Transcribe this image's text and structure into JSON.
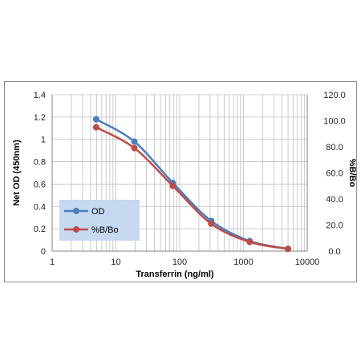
{
  "chart_data": {
    "type": "line",
    "xscale": "log",
    "xlabel": "Transferrin (ng/ml)",
    "ylabel": "Net OD (450nm)",
    "y2label": "%B/Bo",
    "xlim": [
      1,
      10000
    ],
    "ylim": [
      0,
      1.4
    ],
    "y2lim": [
      0,
      120
    ],
    "x_ticks": [
      "1",
      "10",
      "100",
      "1000",
      "10000"
    ],
    "y_ticks": [
      "0",
      "0.2",
      "0.4",
      "0.6",
      "0.8",
      "1",
      "1.2",
      "1.4"
    ],
    "y2_ticks": [
      "0.0",
      "20.0",
      "40.0",
      "60.0",
      "80.0",
      "100.0",
      "120.0"
    ],
    "grid": true,
    "legend_position": "left",
    "series": [
      {
        "name": "OD",
        "axis": "left",
        "color": "#4a7ebb",
        "x": [
          4.9,
          19.5,
          78,
          312,
          1250,
          5000
        ],
        "values": [
          1.18,
          0.98,
          0.61,
          0.27,
          0.09,
          0.02
        ]
      },
      {
        "name": "%B/Bo",
        "axis": "right",
        "color": "#be4b48",
        "x": [
          4.9,
          19.5,
          78,
          312,
          1250,
          5000
        ],
        "values": [
          95.0,
          79.0,
          50.0,
          21.0,
          7.0,
          1.7
        ]
      }
    ]
  },
  "colors": {
    "legend_background": "#c6d9f1",
    "grid_line": "#bfbfbf",
    "axis_line": "#868686"
  }
}
